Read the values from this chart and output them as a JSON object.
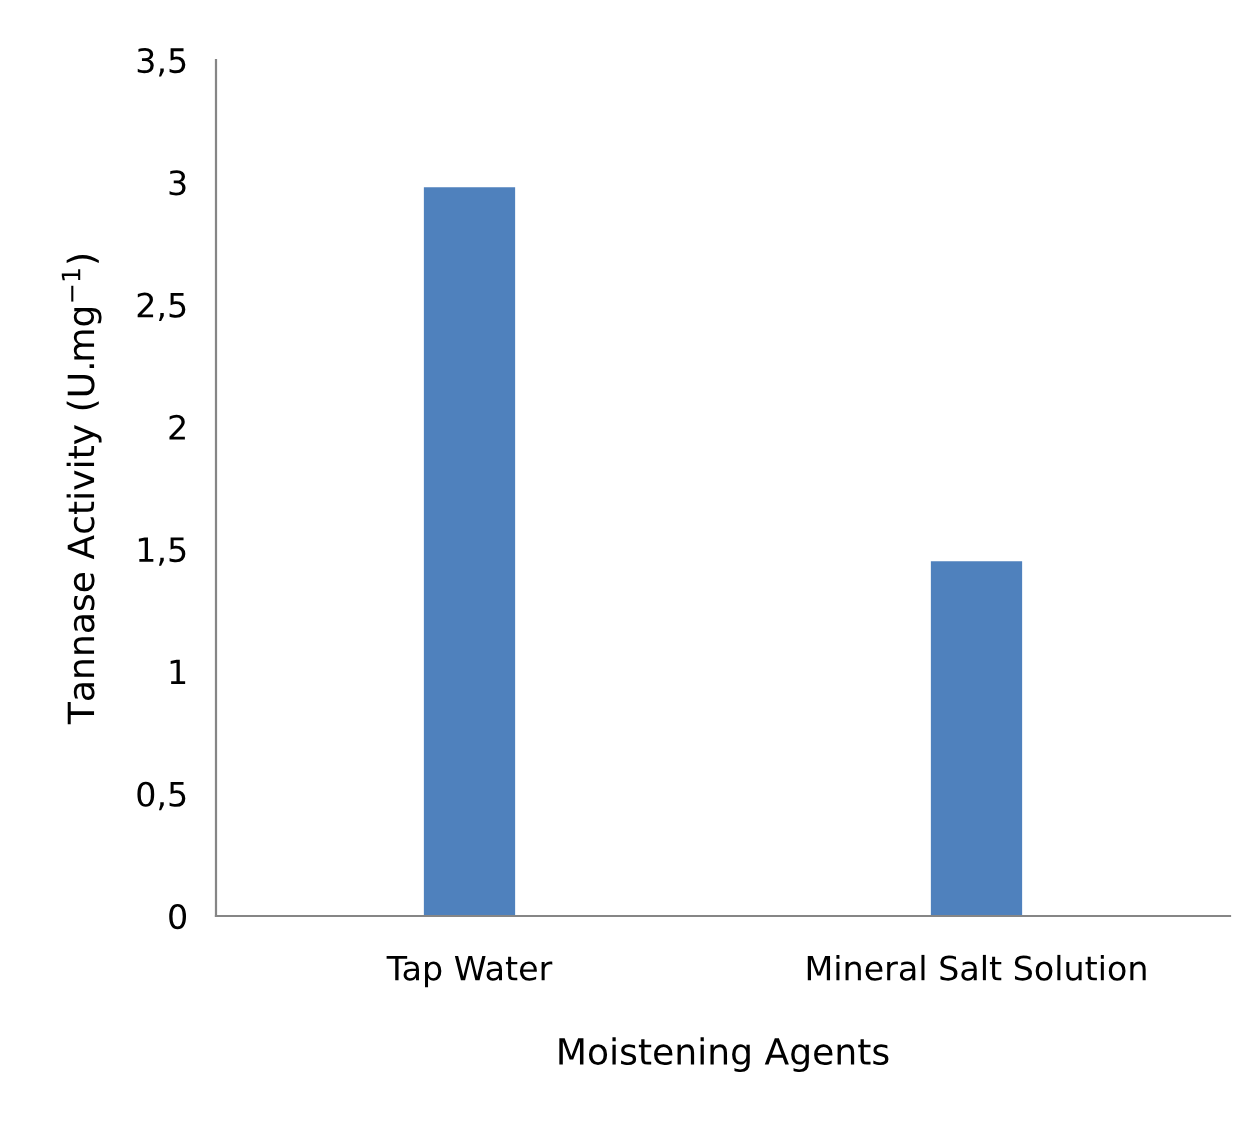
{
  "chart_data": {
    "type": "bar",
    "xlabel": "Moistening Agents",
    "ylabel": "Tannase Activity (U.mg$^{−1}$)",
    "categories": [
      "Tap Water",
      "Mineral Salt Solution"
    ],
    "values": [
      2.98,
      1.45
    ],
    "color": "#4f81bd",
    "ylim": [
      0,
      3.5
    ],
    "yticks": [
      0,
      {
        "value": 0.5,
        "label": "0,5"
      },
      1,
      {
        "value": 1.5,
        "label": "1,5"
      },
      2,
      {
        "value": 2.5,
        "label": "2,5"
      },
      3,
      {
        "value": 3.5,
        "label": "3,5"
      }
    ],
    "grid": false
  }
}
